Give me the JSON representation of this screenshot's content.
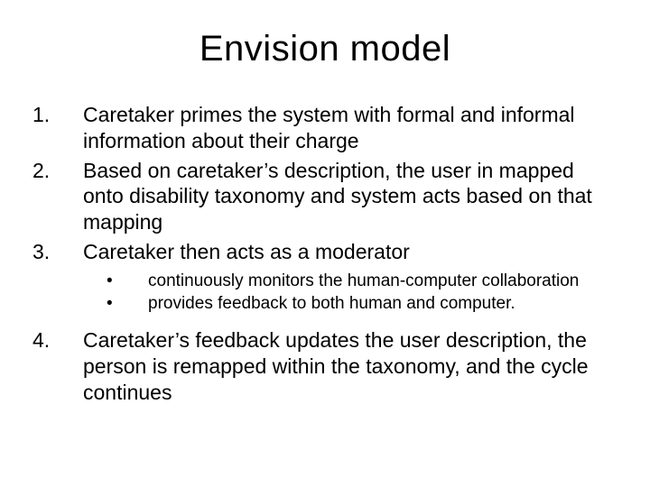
{
  "slide": {
    "title": "Envision model",
    "title_fontsize": 40,
    "body_fontsize": 23,
    "sub_fontsize": 19,
    "background_color": "#ffffff",
    "text_color": "#000000",
    "items": [
      {
        "num": "1.",
        "text": "Caretaker primes the system with formal and informal information about their charge"
      },
      {
        "num": "2.",
        "text": "Based on caretaker’s description, the user in mapped onto disability taxonomy and system acts based on that mapping"
      },
      {
        "num": "3.",
        "text": "Caretaker then acts as a moderator"
      }
    ],
    "subitems": [
      "continuously monitors the human-computer collaboration",
      "provides feedback to both human and computer."
    ],
    "items2": [
      {
        "num": "4.",
        "text": "Caretaker’s feedback updates the user description, the person is remapped within the taxonomy, and the cycle continues"
      }
    ]
  }
}
